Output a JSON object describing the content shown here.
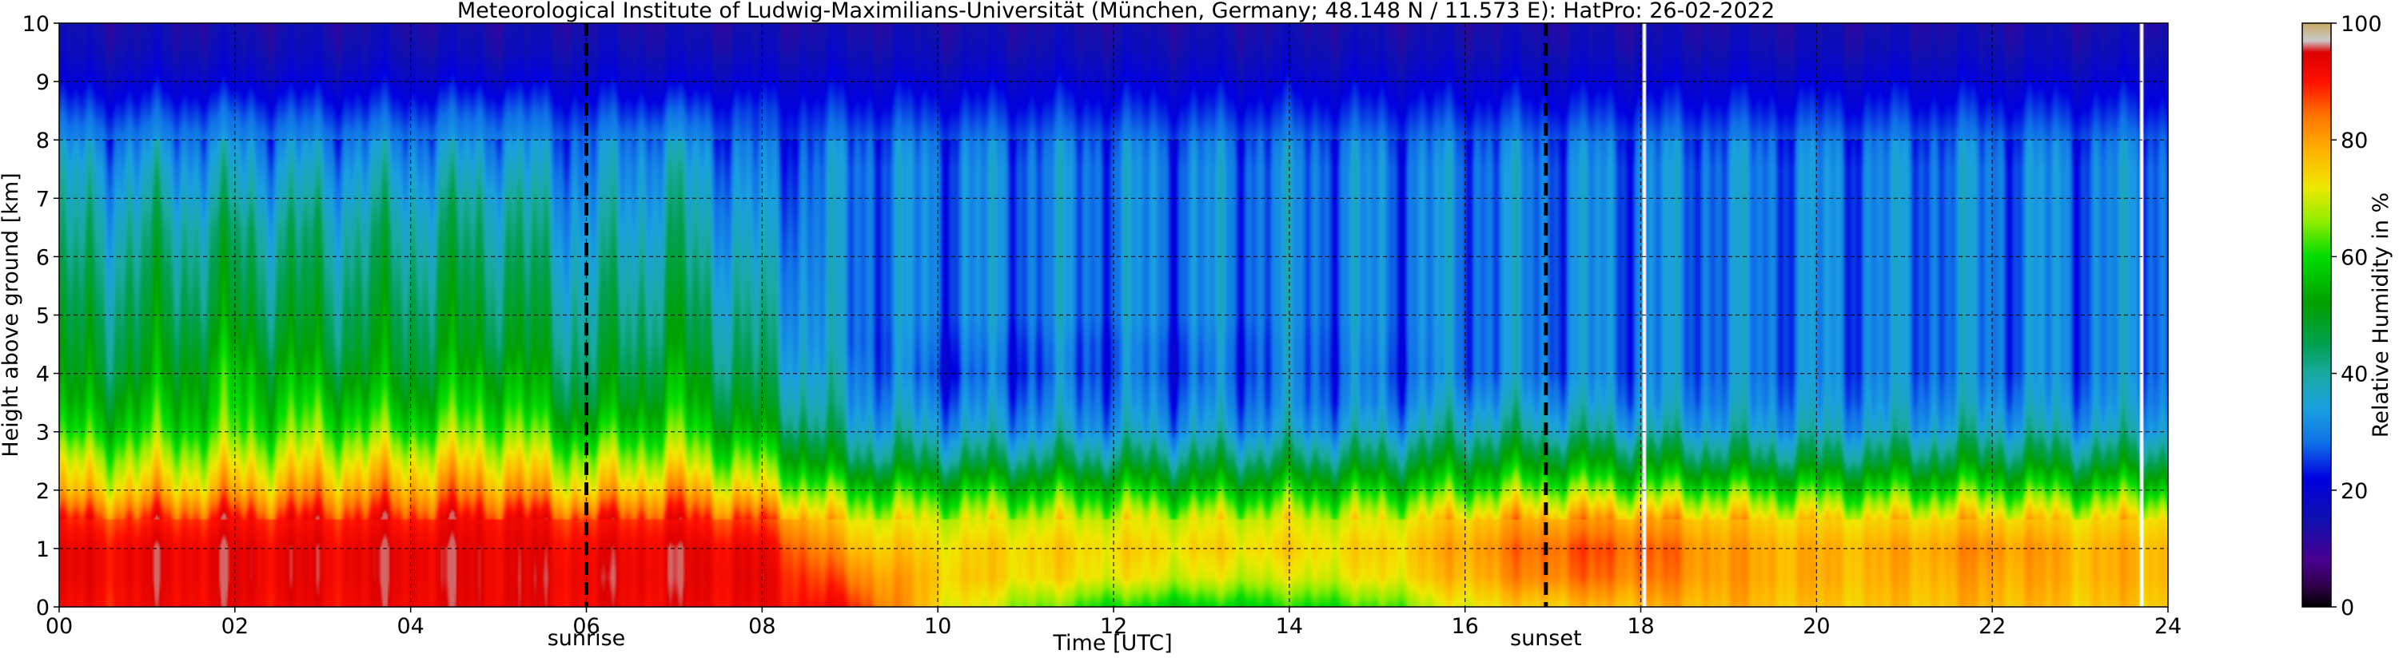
{
  "chart_data": {
    "type": "heatmap",
    "title": "Meteorological Institute of Ludwig-Maximilians-Universität (München, Germany; 48.148 N / 11.573 E):    HatPro: 26-02-2022",
    "xlabel": "Time [UTC]",
    "ylabel": "Height above ground [km]",
    "xlim": [
      0,
      24
    ],
    "ylim": [
      0,
      10
    ],
    "x_ticks": [
      0,
      2,
      4,
      6,
      8,
      10,
      12,
      14,
      16,
      18,
      20,
      22,
      24
    ],
    "x_tick_labels": [
      "00",
      "02",
      "04",
      "06",
      "08",
      "10",
      "12",
      "14",
      "16",
      "18",
      "20",
      "22",
      "24"
    ],
    "y_ticks": [
      0,
      1,
      2,
      3,
      4,
      5,
      6,
      7,
      8,
      9,
      10
    ],
    "y_tick_labels": [
      "0",
      "1",
      "2",
      "3",
      "4",
      "5",
      "6",
      "7",
      "8",
      "9",
      "10"
    ],
    "grid": true,
    "colorbar": {
      "label": "Relative Humidity in %",
      "range": [
        0,
        100
      ],
      "ticks": [
        0,
        20,
        40,
        60,
        80,
        100
      ],
      "tick_labels": [
        "0",
        "20",
        "40",
        "60",
        "80",
        "100"
      ],
      "stops": [
        {
          "v": 0,
          "c": "#000000"
        },
        {
          "v": 3,
          "c": "#2a0040"
        },
        {
          "v": 8,
          "c": "#4a0090"
        },
        {
          "v": 15,
          "c": "#1010b0"
        },
        {
          "v": 22,
          "c": "#0000e0"
        },
        {
          "v": 28,
          "c": "#1070e8"
        },
        {
          "v": 34,
          "c": "#1aa0e0"
        },
        {
          "v": 40,
          "c": "#1aaaa0"
        },
        {
          "v": 45,
          "c": "#00a050"
        },
        {
          "v": 52,
          "c": "#00a000"
        },
        {
          "v": 60,
          "c": "#00dd00"
        },
        {
          "v": 66,
          "c": "#90ee00"
        },
        {
          "v": 72,
          "c": "#f0e800"
        },
        {
          "v": 78,
          "c": "#ffb400"
        },
        {
          "v": 84,
          "c": "#ff7800"
        },
        {
          "v": 90,
          "c": "#ff1000"
        },
        {
          "v": 95,
          "c": "#dd0000"
        },
        {
          "v": 97,
          "c": "#cccccc"
        },
        {
          "v": 100,
          "c": "#c8a864"
        }
      ]
    },
    "annotations": [
      {
        "x": 6.0,
        "label": "sunrise",
        "style": "dashed-vertical"
      },
      {
        "x": 16.92,
        "label": "sunset",
        "style": "dashed-vertical"
      }
    ],
    "data_gaps_x": [
      18.02,
      23.68
    ],
    "height_levels_km": [
      0,
      0.5,
      1.0,
      1.5,
      2.0,
      2.5,
      3.0,
      3.5,
      4.0,
      4.5,
      5.0,
      5.5,
      6.0,
      6.5,
      7.0,
      7.5,
      8.0,
      8.5,
      9.0,
      9.5,
      10.0
    ],
    "profiles": [
      {
        "t": 0,
        "rh": [
          90,
          92,
          92,
          88,
          75,
          68,
          58,
          52,
          48,
          46,
          44,
          42,
          40,
          38,
          36,
          34,
          30,
          25,
          20,
          16,
          14
        ]
      },
      {
        "t": 1,
        "rh": [
          92,
          93,
          93,
          88,
          76,
          68,
          60,
          55,
          50,
          48,
          46,
          44,
          42,
          40,
          37,
          34,
          30,
          25,
          20,
          16,
          14
        ]
      },
      {
        "t": 2,
        "rh": [
          93,
          94,
          94,
          90,
          78,
          70,
          62,
          58,
          56,
          52,
          48,
          46,
          44,
          42,
          38,
          35,
          31,
          26,
          20,
          16,
          14
        ]
      },
      {
        "t": 3,
        "rh": [
          92,
          93,
          93,
          90,
          80,
          72,
          64,
          58,
          52,
          48,
          46,
          44,
          42,
          40,
          37,
          34,
          30,
          25,
          20,
          16,
          14
        ]
      },
      {
        "t": 4,
        "rh": [
          93,
          94,
          94,
          90,
          80,
          72,
          62,
          55,
          50,
          48,
          46,
          44,
          42,
          40,
          37,
          34,
          30,
          25,
          20,
          16,
          14
        ]
      },
      {
        "t": 5,
        "rh": [
          94,
          94,
          94,
          92,
          82,
          74,
          66,
          60,
          55,
          50,
          48,
          46,
          44,
          42,
          40,
          36,
          32,
          27,
          21,
          16,
          14
        ]
      },
      {
        "t": 6,
        "rh": [
          92,
          93,
          92,
          88,
          74,
          66,
          56,
          48,
          44,
          42,
          40,
          38,
          36,
          34,
          32,
          30,
          28,
          24,
          20,
          16,
          14
        ]
      },
      {
        "t": 7,
        "rh": [
          93,
          94,
          94,
          90,
          80,
          70,
          62,
          56,
          52,
          48,
          46,
          44,
          42,
          40,
          38,
          36,
          32,
          26,
          20,
          16,
          14
        ]
      },
      {
        "t": 8,
        "rh": [
          92,
          93,
          92,
          86,
          72,
          62,
          52,
          46,
          42,
          40,
          38,
          36,
          34,
          32,
          30,
          28,
          26,
          24,
          20,
          16,
          14
        ]
      },
      {
        "t": 9,
        "rh": [
          90,
          84,
          78,
          72,
          60,
          46,
          38,
          34,
          32,
          30,
          30,
          30,
          30,
          30,
          30,
          30,
          28,
          24,
          20,
          16,
          14
        ]
      },
      {
        "t": 10,
        "rh": [
          74,
          76,
          74,
          70,
          58,
          44,
          35,
          30,
          26,
          28,
          30,
          30,
          30,
          30,
          30,
          30,
          28,
          24,
          20,
          16,
          14
        ]
      },
      {
        "t": 11,
        "rh": [
          66,
          74,
          75,
          70,
          58,
          44,
          34,
          30,
          27,
          28,
          30,
          30,
          30,
          30,
          30,
          30,
          28,
          24,
          20,
          16,
          14
        ]
      },
      {
        "t": 12,
        "rh": [
          60,
          72,
          74,
          70,
          58,
          44,
          34,
          30,
          28,
          28,
          30,
          30,
          30,
          30,
          30,
          30,
          28,
          24,
          20,
          16,
          14
        ]
      },
      {
        "t": 13,
        "rh": [
          58,
          70,
          74,
          70,
          56,
          44,
          34,
          30,
          27,
          28,
          30,
          30,
          30,
          30,
          30,
          30,
          28,
          24,
          20,
          16,
          14
        ]
      },
      {
        "t": 14,
        "rh": [
          60,
          70,
          74,
          70,
          58,
          44,
          34,
          30,
          29,
          29,
          30,
          30,
          30,
          30,
          30,
          30,
          28,
          24,
          20,
          16,
          14
        ]
      },
      {
        "t": 15,
        "rh": [
          62,
          72,
          74,
          70,
          58,
          45,
          35,
          30,
          28,
          29,
          30,
          30,
          30,
          30,
          30,
          30,
          28,
          24,
          20,
          16,
          14
        ]
      },
      {
        "t": 16,
        "rh": [
          72,
          78,
          80,
          76,
          62,
          50,
          40,
          34,
          30,
          30,
          30,
          30,
          30,
          30,
          30,
          30,
          28,
          24,
          20,
          16,
          14
        ]
      },
      {
        "t": 17,
        "rh": [
          76,
          84,
          86,
          80,
          66,
          52,
          40,
          34,
          30,
          30,
          30,
          30,
          30,
          30,
          30,
          30,
          28,
          24,
          20,
          16,
          14
        ]
      },
      {
        "t": 18,
        "rh": [
          78,
          84,
          86,
          80,
          64,
          50,
          38,
          32,
          30,
          30,
          30,
          30,
          30,
          30,
          30,
          30,
          28,
          24,
          20,
          16,
          14
        ]
      },
      {
        "t": 19,
        "rh": [
          78,
          80,
          80,
          76,
          62,
          46,
          36,
          32,
          30,
          30,
          30,
          30,
          30,
          30,
          30,
          30,
          28,
          24,
          20,
          16,
          14
        ]
      },
      {
        "t": 20,
        "rh": [
          76,
          78,
          78,
          74,
          60,
          45,
          36,
          32,
          30,
          30,
          30,
          30,
          30,
          30,
          30,
          30,
          28,
          24,
          20,
          16,
          14
        ]
      },
      {
        "t": 21,
        "rh": [
          76,
          78,
          79,
          74,
          60,
          46,
          36,
          32,
          30,
          30,
          30,
          30,
          30,
          30,
          30,
          30,
          28,
          24,
          20,
          16,
          14
        ]
      },
      {
        "t": 22,
        "rh": [
          78,
          80,
          82,
          76,
          62,
          48,
          38,
          33,
          30,
          30,
          30,
          30,
          30,
          30,
          30,
          30,
          28,
          24,
          20,
          16,
          14
        ]
      },
      {
        "t": 23,
        "rh": [
          76,
          78,
          78,
          74,
          60,
          46,
          36,
          32,
          30,
          30,
          30,
          30,
          30,
          30,
          30,
          30,
          28,
          24,
          20,
          16,
          14
        ]
      },
      {
        "t": 24,
        "rh": [
          76,
          78,
          78,
          74,
          60,
          46,
          36,
          32,
          30,
          30,
          30,
          30,
          30,
          30,
          30,
          30,
          28,
          24,
          20,
          16,
          14
        ]
      }
    ]
  }
}
